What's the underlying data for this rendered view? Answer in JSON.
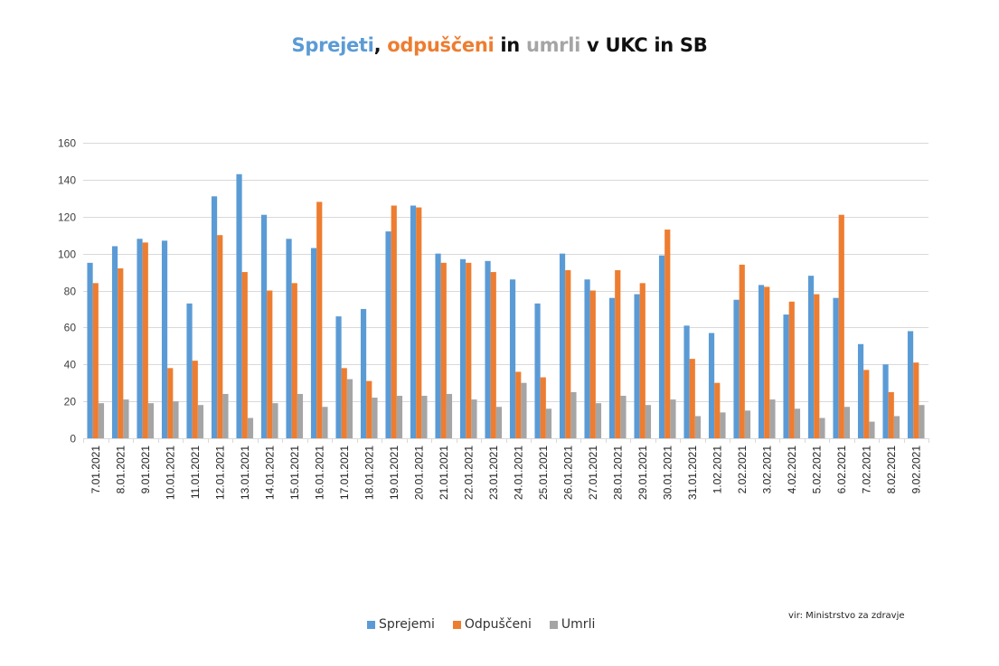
{
  "title": {
    "part1": "Sprejeti",
    "sep1": ", ",
    "part2": "odpuščeni",
    "sep2": " in ",
    "part3": "umrli",
    "part4": " v UKC in SB"
  },
  "source": "vir: Ministrstvo za zdravje",
  "colors": {
    "sprejemi": "#5b9bd5",
    "odpusceni": "#ed7d31",
    "umrli": "#a5a5a5",
    "grid": "#d9d9d9"
  },
  "chart_data": {
    "type": "bar",
    "title": "Sprejeti, odpuščeni in umrli v UKC in SB",
    "xlabel": "",
    "ylabel": "",
    "ylim": [
      0,
      160
    ],
    "yticks": [
      0,
      20,
      40,
      60,
      80,
      100,
      120,
      140,
      160
    ],
    "grid": true,
    "legend_position": "bottom",
    "categories": [
      "7.01.2021",
      "8.01.2021",
      "9.01.2021",
      "10.01.2021",
      "11.01.2021",
      "12.01.2021",
      "13.01.2021",
      "14.01.2021",
      "15.01.2021",
      "16.01.2021",
      "17.01.2021",
      "18.01.2021",
      "19.01.2021",
      "20.01.2021",
      "21.01.2021",
      "22.01.2021",
      "23.01.2021",
      "24.01.2021",
      "25.01.2021",
      "26.01.2021",
      "27.01.2021",
      "28.01.2021",
      "29.01.2021",
      "30.01.2021",
      "31.01.2021",
      "1.02.2021",
      "2.02.2021",
      "3.02.2021",
      "4.02.2021",
      "5.02.2021",
      "6.02.2021",
      "7.02.2021",
      "8.02.2021",
      "9.02.2021"
    ],
    "series": [
      {
        "name": "Sprejemi",
        "color": "#5b9bd5",
        "values": [
          95,
          104,
          108,
          107,
          73,
          131,
          143,
          121,
          108,
          103,
          66,
          70,
          112,
          126,
          100,
          97,
          96,
          86,
          73,
          100,
          86,
          76,
          78,
          99,
          61,
          57,
          75,
          83,
          67,
          88,
          76,
          51,
          40,
          58
        ]
      },
      {
        "name": "Odpuščeni",
        "color": "#ed7d31",
        "values": [
          84,
          92,
          106,
          38,
          42,
          110,
          90,
          80,
          84,
          128,
          38,
          31,
          126,
          125,
          95,
          95,
          90,
          36,
          33,
          91,
          80,
          91,
          84,
          113,
          43,
          30,
          94,
          82,
          74,
          78,
          121,
          37,
          25,
          41
        ]
      },
      {
        "name": "Umrli",
        "color": "#a5a5a5",
        "values": [
          19,
          21,
          19,
          20,
          18,
          24,
          11,
          19,
          24,
          17,
          32,
          22,
          23,
          23,
          24,
          21,
          17,
          30,
          16,
          25,
          19,
          23,
          18,
          21,
          12,
          14,
          15,
          21,
          16,
          11,
          17,
          9,
          12,
          18
        ]
      }
    ]
  }
}
